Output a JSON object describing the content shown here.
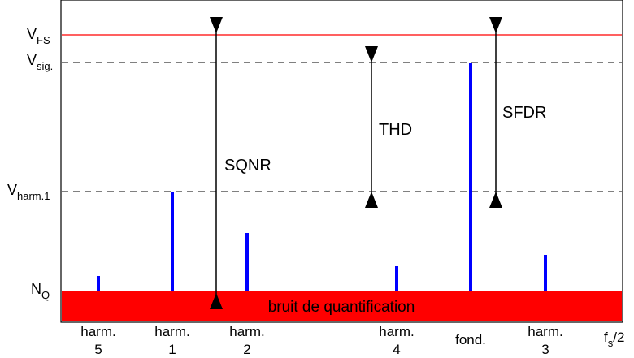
{
  "levels": {
    "vfs": {
      "label": "V",
      "sub": "FS",
      "color": "#ff0000"
    },
    "vsig": {
      "label": "V",
      "sub": "sig."
    },
    "vharm": {
      "label": "V",
      "sub": "harm.1"
    },
    "nq": {
      "label": "N",
      "sub": "Q"
    }
  },
  "noise_floor": {
    "label": "bruit de quantification",
    "color": "#ff0000"
  },
  "spectral_lines": {
    "color": "#0000ff",
    "items": [
      {
        "id": "harm5",
        "line1": "harm.",
        "line2": "5",
        "relative_level": 0.07
      },
      {
        "id": "harm1",
        "line1": "harm.",
        "line2": "1",
        "relative_level": 0.45
      },
      {
        "id": "harm2",
        "line1": "harm.",
        "line2": "2",
        "relative_level": 0.26
      },
      {
        "id": "harm4",
        "line1": "harm.",
        "line2": "4",
        "relative_level": 0.11
      },
      {
        "id": "fund",
        "line1": "fond.",
        "line2": "",
        "relative_level": 1.0
      },
      {
        "id": "harm3",
        "line1": "harm.",
        "line2": "3",
        "relative_level": 0.16
      }
    ]
  },
  "fs_label": {
    "main": "f",
    "sub": "s",
    "suffix": "/2"
  },
  "measures": {
    "sqnr": "SQNR",
    "thd": "THD",
    "sfdr": "SFDR"
  }
}
